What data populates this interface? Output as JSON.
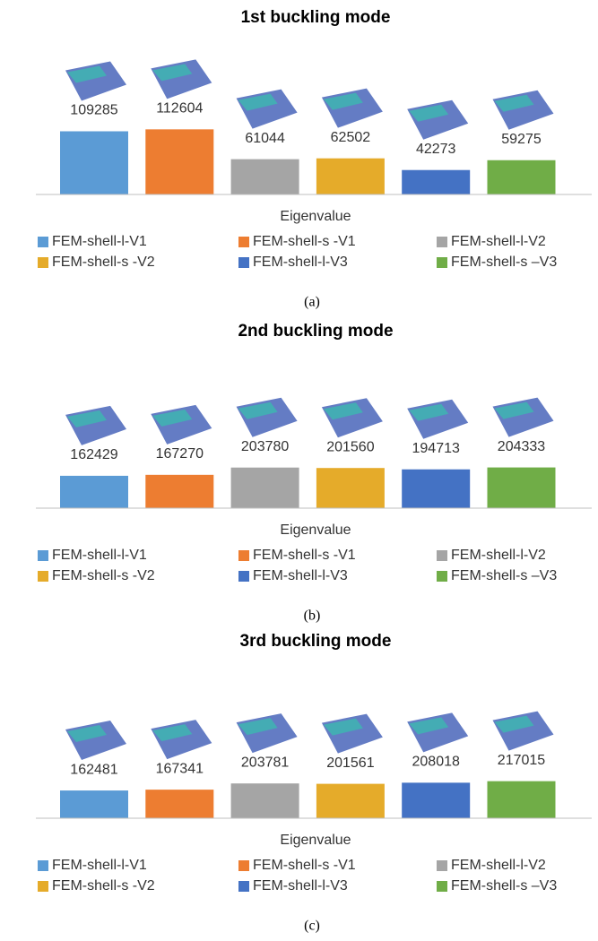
{
  "chart_data": [
    {
      "type": "bar",
      "title": "1st buckling mode",
      "x_label": "Eigenvalue",
      "caption": "(a)",
      "ylim": [
        0,
        310000
      ],
      "series": [
        {
          "name": "FEM-shell-l-V1",
          "color": "#5b9bd5",
          "values": [
            109285
          ]
        },
        {
          "name": "FEM-shell-s -V1",
          "color": "#ed7d31",
          "values": [
            112604
          ]
        },
        {
          "name": "FEM-shell-l-V2",
          "color": "#a5a5a5",
          "values": [
            61044
          ]
        },
        {
          "name": "FEM-shell-s -V2",
          "color": "#e5ab2a",
          "values": [
            62502
          ]
        },
        {
          "name": "FEM-shell-l-V3",
          "color": "#4472c4",
          "values": [
            42273
          ]
        },
        {
          "name": "FEM-shell-s –V3",
          "color": "#70ad47",
          "values": [
            59275
          ]
        }
      ]
    },
    {
      "type": "bar",
      "title": "2nd buckling mode",
      "x_label": "Eigenvalue",
      "caption": "(b)",
      "ylim": [
        0,
        900000
      ],
      "series": [
        {
          "name": "FEM-shell-l-V1",
          "color": "#5b9bd5",
          "values": [
            162429
          ]
        },
        {
          "name": "FEM-shell-s -V1",
          "color": "#ed7d31",
          "values": [
            167270
          ]
        },
        {
          "name": "FEM-shell-l-V2",
          "color": "#a5a5a5",
          "values": [
            203780
          ]
        },
        {
          "name": "FEM-shell-s -V2",
          "color": "#e5ab2a",
          "values": [
            201560
          ]
        },
        {
          "name": "FEM-shell-l-V3",
          "color": "#4472c4",
          "values": [
            194713
          ]
        },
        {
          "name": "FEM-shell-s –V3",
          "color": "#70ad47",
          "values": [
            204333
          ]
        }
      ]
    },
    {
      "type": "bar",
      "title": "3rd buckling mode",
      "x_label": "Eigenvalue",
      "caption": "(c)",
      "ylim": [
        0,
        1050000
      ],
      "series": [
        {
          "name": "FEM-shell-l-V1",
          "color": "#5b9bd5",
          "values": [
            162481
          ]
        },
        {
          "name": "FEM-shell-s -V1",
          "color": "#ed7d31",
          "values": [
            167341
          ]
        },
        {
          "name": "FEM-shell-l-V2",
          "color": "#a5a5a5",
          "values": [
            203781
          ]
        },
        {
          "name": "FEM-shell-s -V2",
          "color": "#e5ab2a",
          "values": [
            201561
          ]
        },
        {
          "name": "FEM-shell-l-V3",
          "color": "#4472c4",
          "values": [
            208018
          ]
        },
        {
          "name": "FEM-shell-s –V3",
          "color": "#70ad47",
          "values": [
            217015
          ]
        }
      ]
    }
  ]
}
